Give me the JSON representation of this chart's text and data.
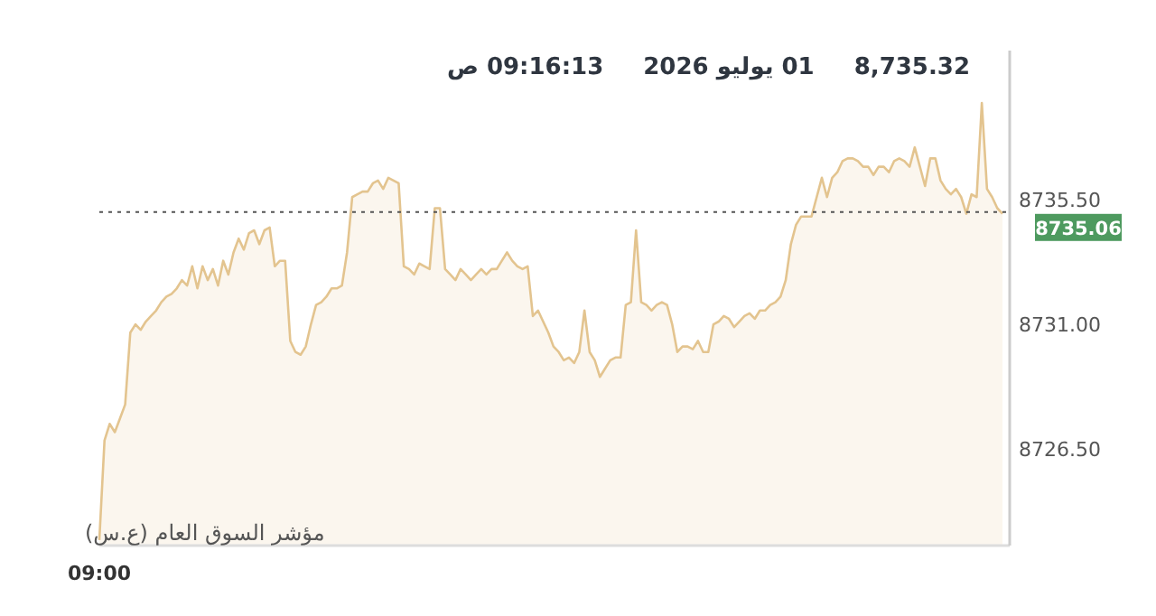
{
  "chart_data": {
    "type": "area",
    "annotations": [
      "8,735.32",
      "01 يوليو 2026",
      "09:16:13 ص",
      "مؤشر السوق العام (ع.س)"
    ],
    "categories": [
      "09:00",
      null,
      null,
      null,
      null,
      null,
      null,
      null,
      null,
      null,
      null,
      null,
      null,
      null,
      null,
      null,
      null,
      null,
      null,
      null,
      null,
      null,
      null,
      null,
      null,
      null,
      null,
      null,
      null,
      null,
      null,
      null,
      null,
      null,
      null,
      null,
      null,
      null,
      null,
      null,
      null,
      null,
      null,
      null,
      null,
      null,
      null,
      null,
      null,
      null,
      null,
      null,
      null,
      null,
      null,
      null,
      null,
      null,
      null,
      null,
      null,
      null,
      null,
      null,
      null,
      null,
      null,
      null,
      null,
      null,
      null,
      null,
      null,
      null,
      null,
      null,
      null,
      null,
      null,
      null,
      null,
      null,
      null,
      null,
      null,
      null,
      null,
      null,
      null,
      null,
      null,
      null,
      null,
      null,
      null,
      null,
      null,
      null,
      null,
      null,
      null,
      null,
      null,
      null,
      null,
      null,
      null,
      null,
      null,
      null,
      null,
      null,
      null,
      null,
      null,
      null,
      null,
      null,
      null,
      null,
      null,
      null,
      null,
      null,
      null,
      null,
      null,
      null,
      null,
      null,
      null,
      null,
      null,
      null,
      null,
      null,
      null,
      null,
      null,
      null,
      null,
      null,
      null,
      null,
      null,
      null,
      null,
      null,
      null,
      null,
      null,
      null,
      null,
      null,
      null,
      null,
      null,
      null,
      null,
      null,
      null,
      null,
      null,
      null,
      null,
      null,
      null,
      null,
      null,
      null,
      null,
      null,
      null,
      null,
      null,
      null
    ],
    "ylim": [
      8723.0,
      8740.9
    ],
    "yticks": [
      {
        "value": 8726.5,
        "label": "8726.50"
      },
      {
        "value": 8731.0,
        "label": "8731.00"
      },
      {
        "value": 8735.5,
        "label": "8735.50"
      }
    ],
    "ref_lines": [
      {
        "axis": "y",
        "value": 8735.06,
        "label": "8735.06",
        "color": "#555555",
        "line_style": "dotted"
      }
    ],
    "series": [
      {
        "color": "#e3c48f",
        "values": [
          8723.2,
          8726.8,
          8727.4,
          8727.1,
          8727.6,
          8728.1,
          8730.7,
          8731.0,
          8730.8,
          8731.1,
          8731.3,
          8731.5,
          8731.8,
          8732.0,
          8732.1,
          8732.3,
          8732.6,
          8732.4,
          8733.1,
          8732.3,
          8733.1,
          8732.6,
          8733.0,
          8732.4,
          8733.3,
          8732.8,
          8733.6,
          8734.1,
          8733.7,
          8734.3,
          8734.4,
          8733.9,
          8734.4,
          8734.5,
          8733.1,
          8733.3,
          8733.3,
          8730.4,
          8730.0,
          8729.9,
          8730.2,
          8731.0,
          8731.7,
          8731.8,
          8732.0,
          8732.3,
          8732.3,
          8732.4,
          8733.6,
          8735.6,
          8735.7,
          8735.8,
          8735.8,
          8736.1,
          8736.2,
          8735.9,
          8736.3,
          8736.2,
          8736.1,
          8733.1,
          8733.0,
          8732.8,
          8733.2,
          8733.1,
          8733.0,
          8735.2,
          8735.2,
          8733.0,
          8732.8,
          8732.6,
          8733.0,
          8732.8,
          8732.6,
          8732.8,
          8733.0,
          8732.8,
          8733.0,
          8733.0,
          8733.3,
          8733.6,
          8733.3,
          8733.1,
          8733.0,
          8733.1,
          8731.3,
          8731.5,
          8731.1,
          8730.7,
          8730.2,
          8730.0,
          8729.7,
          8729.8,
          8729.6,
          8730.0,
          8731.5,
          8730.0,
          8729.7,
          8729.1,
          8729.4,
          8729.7,
          8729.8,
          8729.8,
          8731.7,
          8731.8,
          8734.4,
          8731.8,
          8731.7,
          8731.5,
          8731.7,
          8731.8,
          8731.7,
          8731.0,
          8730.0,
          8730.2,
          8730.2,
          8730.1,
          8730.4,
          8730.0,
          8730.0,
          8731.0,
          8731.1,
          8731.3,
          8731.2,
          8730.9,
          8731.1,
          8731.3,
          8731.4,
          8731.2,
          8731.5,
          8731.5,
          8731.7,
          8731.8,
          8732.0,
          8732.6,
          8733.9,
          8734.6,
          8734.9,
          8734.9,
          8734.9,
          8735.6,
          8736.3,
          8735.6,
          8736.3,
          8736.5,
          8736.9,
          8737.0,
          8737.0,
          8736.9,
          8736.7,
          8736.7,
          8736.4,
          8736.7,
          8736.7,
          8736.5,
          8736.9,
          8737.0,
          8736.9,
          8736.7,
          8737.4,
          8736.7,
          8736.0,
          8737.0,
          8737.0,
          8736.2,
          8735.9,
          8735.7,
          8735.9,
          8735.6,
          8735.0,
          8735.7,
          8735.6,
          8739.0,
          8735.9,
          8735.6,
          8735.2,
          8735.0
        ]
      }
    ]
  }
}
